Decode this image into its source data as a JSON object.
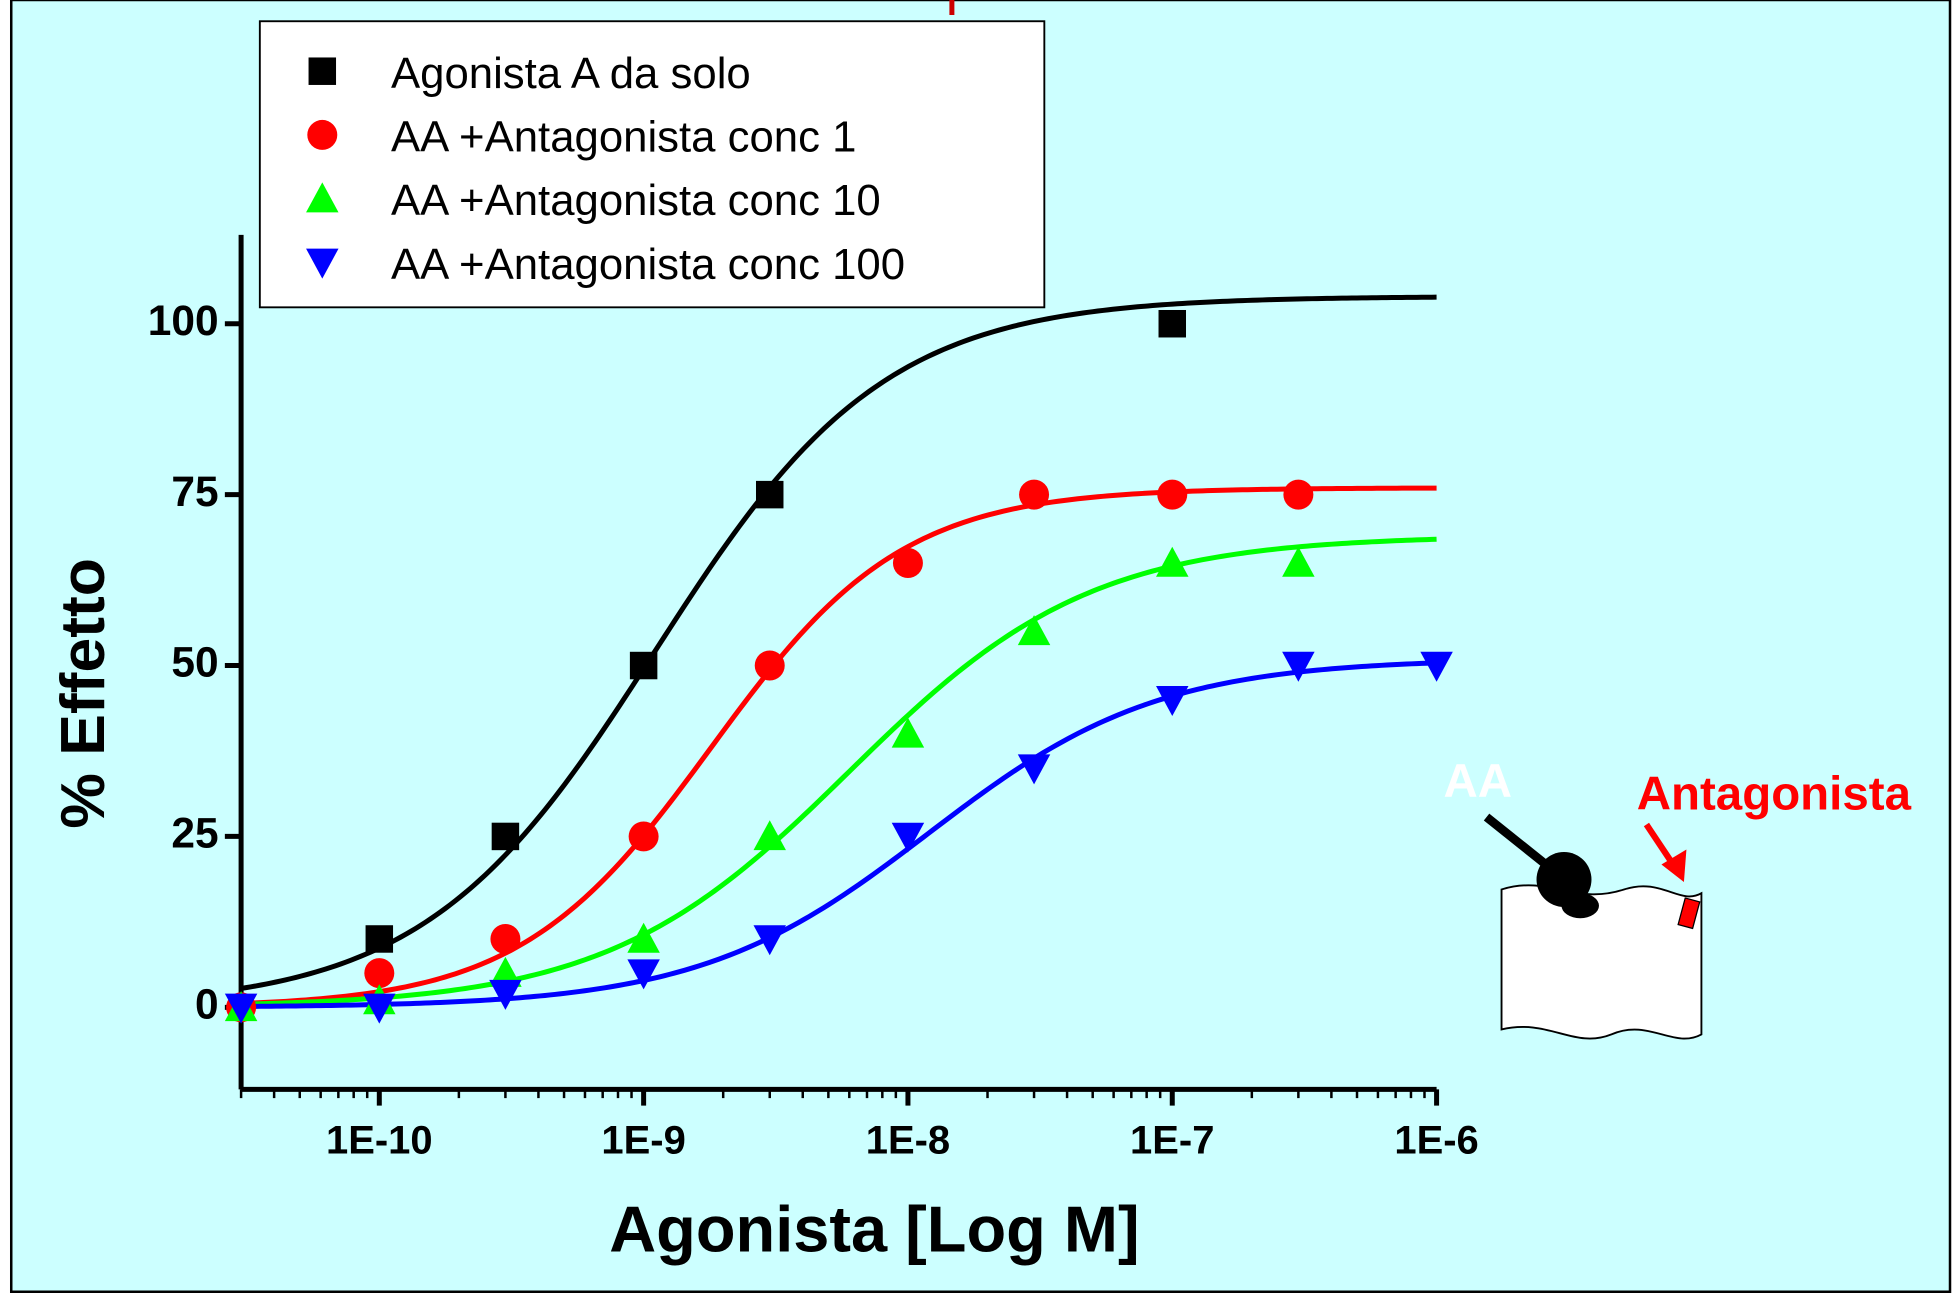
{
  "chart_data": {
    "type": "scatter",
    "xlabel": "Agonista [Log M]",
    "ylabel": "% Effetto",
    "xscale": "log",
    "xlim": [
      3e-11,
      1e-06
    ],
    "xticks": [
      {
        "value": 1e-10,
        "label": "1E-10"
      },
      {
        "value": 1e-09,
        "label": "1E-9"
      },
      {
        "value": 1e-08,
        "label": "1E-8"
      },
      {
        "value": 1e-07,
        "label": "1E-7"
      },
      {
        "value": 1e-06,
        "label": "1E-6"
      }
    ],
    "minor_ticks": true,
    "ylim": [
      -12,
      113
    ],
    "yticks": [
      0,
      25,
      50,
      75,
      100
    ],
    "legend": "top-left",
    "series": [
      {
        "name": "Agonista A da solo",
        "color": "#000000",
        "marker": "square",
        "x": [
          1e-10,
          3e-10,
          1e-09,
          3e-09,
          1e-07
        ],
        "values": [
          10,
          25,
          50,
          75,
          100
        ],
        "fit": {
          "bottom": 0,
          "top": 104,
          "ec50": 1.1e-09,
          "hill": 1
        }
      },
      {
        "name": "AA +Antagonista conc 1",
        "color": "#ff0000",
        "marker": "circle",
        "x": [
          3e-11,
          1e-10,
          3e-10,
          1e-09,
          3e-09,
          1e-08,
          3e-08,
          1e-07,
          3e-07
        ],
        "values": [
          0,
          5,
          10,
          25,
          50,
          65,
          75,
          75,
          75
        ],
        "fit": {
          "bottom": 0,
          "top": 76,
          "ec50": 1.8e-09,
          "hill": 1.2
        }
      },
      {
        "name": "AA +Antagonista conc 10",
        "color": "#00ff00",
        "marker": "triangle-up",
        "x": [
          3e-11,
          1e-10,
          3e-10,
          1e-09,
          3e-09,
          1e-08,
          3e-08,
          1e-07,
          3e-07
        ],
        "values": [
          0,
          1,
          5,
          10,
          25,
          40,
          55,
          65,
          65
        ],
        "fit": {
          "bottom": 0,
          "top": 69,
          "ec50": 6e-09,
          "hill": 0.95
        }
      },
      {
        "name": "AA +Antagonista conc 100",
        "color": "#0000ff",
        "marker": "triangle-down",
        "x": [
          3e-11,
          1e-10,
          3e-10,
          1e-09,
          3e-09,
          1e-08,
          3e-08,
          1e-07,
          3e-07,
          1e-06
        ],
        "values": [
          0,
          0,
          2,
          5,
          10,
          25,
          35,
          45,
          50,
          50
        ],
        "fit": {
          "bottom": 0,
          "top": 51,
          "ec50": 1.2e-08,
          "hill": 1
        }
      }
    ],
    "annotations": [
      "AA",
      "Antagonista"
    ]
  }
}
